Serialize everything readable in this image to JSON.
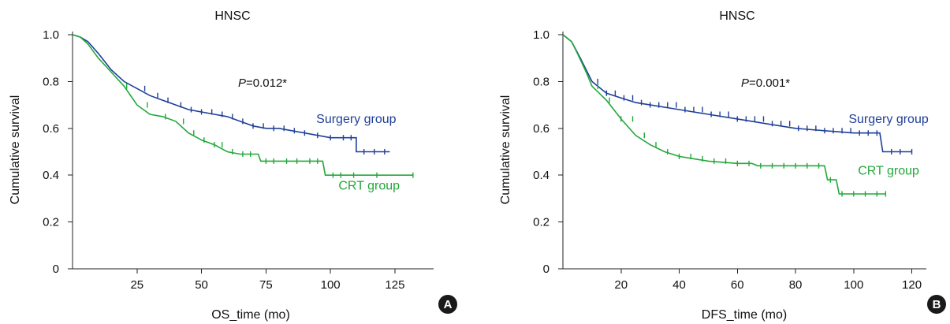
{
  "colors": {
    "surgery": "#1f3f99",
    "crt": "#22a83a",
    "axis": "#222222",
    "badge": "#1a1a1a"
  },
  "chart_data": [
    {
      "type": "line",
      "panel_letter": "A",
      "title": "HNSC",
      "xlabel": "OS_time (mo)",
      "ylabel": "Cumulative survival",
      "xlim": [
        0,
        140
      ],
      "ylim": [
        0,
        1.0
      ],
      "x_ticks": [
        25,
        50,
        75,
        100,
        125
      ],
      "y_ticks": [
        0,
        0.2,
        0.4,
        0.6,
        0.8,
        1.0
      ],
      "y_tick_labels": [
        "0",
        "0.2",
        "0.4",
        "0.6",
        "0.8",
        "1.0"
      ],
      "p_label": "P",
      "p_value": "=0.012*",
      "series": [
        {
          "name": "Surgery group",
          "color_key": "surgery",
          "label_anchor": [
            110,
            0.64
          ],
          "points": [
            [
              0,
              1.0
            ],
            [
              3,
              0.99
            ],
            [
              6,
              0.97
            ],
            [
              10,
              0.92
            ],
            [
              15,
              0.85
            ],
            [
              20,
              0.8
            ],
            [
              25,
              0.77
            ],
            [
              30,
              0.74
            ],
            [
              35,
              0.72
            ],
            [
              40,
              0.7
            ],
            [
              45,
              0.68
            ],
            [
              50,
              0.67
            ],
            [
              55,
              0.66
            ],
            [
              60,
              0.65
            ],
            [
              65,
              0.63
            ],
            [
              70,
              0.61
            ],
            [
              75,
              0.6
            ],
            [
              80,
              0.6
            ],
            [
              85,
              0.59
            ],
            [
              90,
              0.58
            ],
            [
              95,
              0.57
            ],
            [
              100,
              0.56
            ],
            [
              110,
              0.56
            ],
            [
              110,
              0.5
            ],
            [
              123,
              0.5
            ]
          ],
          "censor_x": [
            28,
            33,
            37,
            42,
            46,
            50,
            54,
            58,
            62,
            66,
            70,
            74,
            78,
            82,
            86,
            90,
            95,
            100,
            105,
            108,
            113,
            117,
            121
          ]
        },
        {
          "name": "CRT group",
          "color_key": "crt",
          "label_anchor": [
            115,
            0.355
          ],
          "points": [
            [
              0,
              1.0
            ],
            [
              3,
              0.99
            ],
            [
              6,
              0.96
            ],
            [
              10,
              0.9
            ],
            [
              15,
              0.84
            ],
            [
              20,
              0.78
            ],
            [
              25,
              0.7
            ],
            [
              30,
              0.66
            ],
            [
              35,
              0.65
            ],
            [
              40,
              0.63
            ],
            [
              45,
              0.58
            ],
            [
              50,
              0.55
            ],
            [
              55,
              0.53
            ],
            [
              60,
              0.5
            ],
            [
              65,
              0.49
            ],
            [
              72,
              0.49
            ],
            [
              73,
              0.46
            ],
            [
              97,
              0.46
            ],
            [
              98,
              0.4
            ],
            [
              132,
              0.4
            ]
          ],
          "censor_x": [
            21,
            29,
            36,
            43,
            47,
            51,
            55,
            58,
            62,
            66,
            69,
            75,
            78,
            83,
            87,
            92,
            95,
            101,
            104,
            109,
            118,
            132
          ]
        }
      ]
    },
    {
      "type": "line",
      "panel_letter": "B",
      "title": "HNSC",
      "xlabel": "DFS_time (mo)",
      "ylabel": "Cumulative survival",
      "xlim": [
        0,
        125
      ],
      "ylim": [
        0,
        1.0
      ],
      "x_ticks": [
        20,
        40,
        60,
        80,
        100,
        120
      ],
      "y_ticks": [
        0,
        0.2,
        0.4,
        0.6,
        0.8,
        1.0
      ],
      "y_tick_labels": [
        "0",
        "0.2",
        "0.4",
        "0.6",
        "0.8",
        "1.0"
      ],
      "p_label": "P",
      "p_value": "=0.001*",
      "series": [
        {
          "name": "Surgery group",
          "color_key": "surgery",
          "label_anchor": [
            112,
            0.64
          ],
          "points": [
            [
              0,
              1.0
            ],
            [
              3,
              0.97
            ],
            [
              6,
              0.9
            ],
            [
              10,
              0.8
            ],
            [
              15,
              0.75
            ],
            [
              20,
              0.73
            ],
            [
              25,
              0.71
            ],
            [
              30,
              0.7
            ],
            [
              40,
              0.68
            ],
            [
              50,
              0.66
            ],
            [
              60,
              0.64
            ],
            [
              70,
              0.62
            ],
            [
              80,
              0.6
            ],
            [
              90,
              0.59
            ],
            [
              100,
              0.58
            ],
            [
              109,
              0.58
            ],
            [
              110,
              0.5
            ],
            [
              120,
              0.5
            ]
          ],
          "censor_x": [
            12,
            15,
            18,
            21,
            24,
            27,
            30,
            33,
            36,
            39,
            42,
            45,
            48,
            51,
            54,
            57,
            60,
            63,
            66,
            69,
            72,
            75,
            78,
            81,
            84,
            87,
            90,
            93,
            96,
            99,
            102,
            105,
            108,
            113,
            116,
            120
          ]
        },
        {
          "name": "CRT group",
          "color_key": "crt",
          "label_anchor": [
            112,
            0.42
          ],
          "points": [
            [
              0,
              1.0
            ],
            [
              3,
              0.97
            ],
            [
              5,
              0.92
            ],
            [
              8,
              0.84
            ],
            [
              10,
              0.78
            ],
            [
              15,
              0.72
            ],
            [
              20,
              0.64
            ],
            [
              25,
              0.57
            ],
            [
              30,
              0.53
            ],
            [
              35,
              0.5
            ],
            [
              40,
              0.48
            ],
            [
              45,
              0.47
            ],
            [
              50,
              0.46
            ],
            [
              60,
              0.45
            ],
            [
              65,
              0.45
            ],
            [
              67,
              0.44
            ],
            [
              90,
              0.44
            ],
            [
              91,
              0.38
            ],
            [
              94,
              0.38
            ],
            [
              95,
              0.32
            ],
            [
              111,
              0.32
            ]
          ],
          "censor_x": [
            12,
            16,
            20,
            24,
            28,
            32,
            36,
            40,
            44,
            48,
            52,
            56,
            60,
            64,
            68,
            72,
            76,
            80,
            84,
            88,
            92,
            96,
            100,
            104,
            108,
            111
          ]
        }
      ]
    }
  ]
}
